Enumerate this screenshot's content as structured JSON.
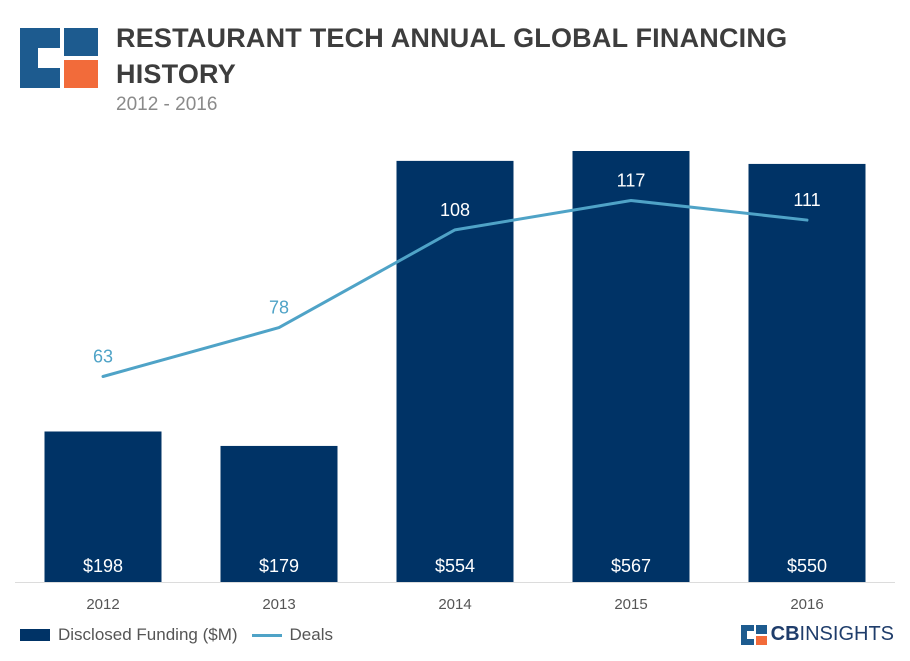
{
  "title": "RESTAURANT TECH ANNUAL GLOBAL FINANCING HISTORY",
  "subtitle": "2012 - 2016",
  "brand": {
    "bold": "CB",
    "light": "INSIGHTS"
  },
  "colors": {
    "bar": "#003366",
    "line": "#4fa3c7",
    "logo_orange": "#f26b3a",
    "logo_blue": "#1d5b8f"
  },
  "chart_data": {
    "type": "bar",
    "categories": [
      "2012",
      "2013",
      "2014",
      "2015",
      "2016"
    ],
    "series": [
      {
        "name": "Disclosed Funding ($M)",
        "type": "bar",
        "values": [
          198,
          179,
          554,
          567,
          550
        ],
        "labels": [
          "$198",
          "$179",
          "$554",
          "$567",
          "$550"
        ]
      },
      {
        "name": "Deals",
        "type": "line",
        "values": [
          63,
          78,
          108,
          117,
          111
        ],
        "labels": [
          "63",
          "78",
          "108",
          "117",
          "111"
        ]
      }
    ],
    "legend": "bottom-left",
    "grid": false
  }
}
